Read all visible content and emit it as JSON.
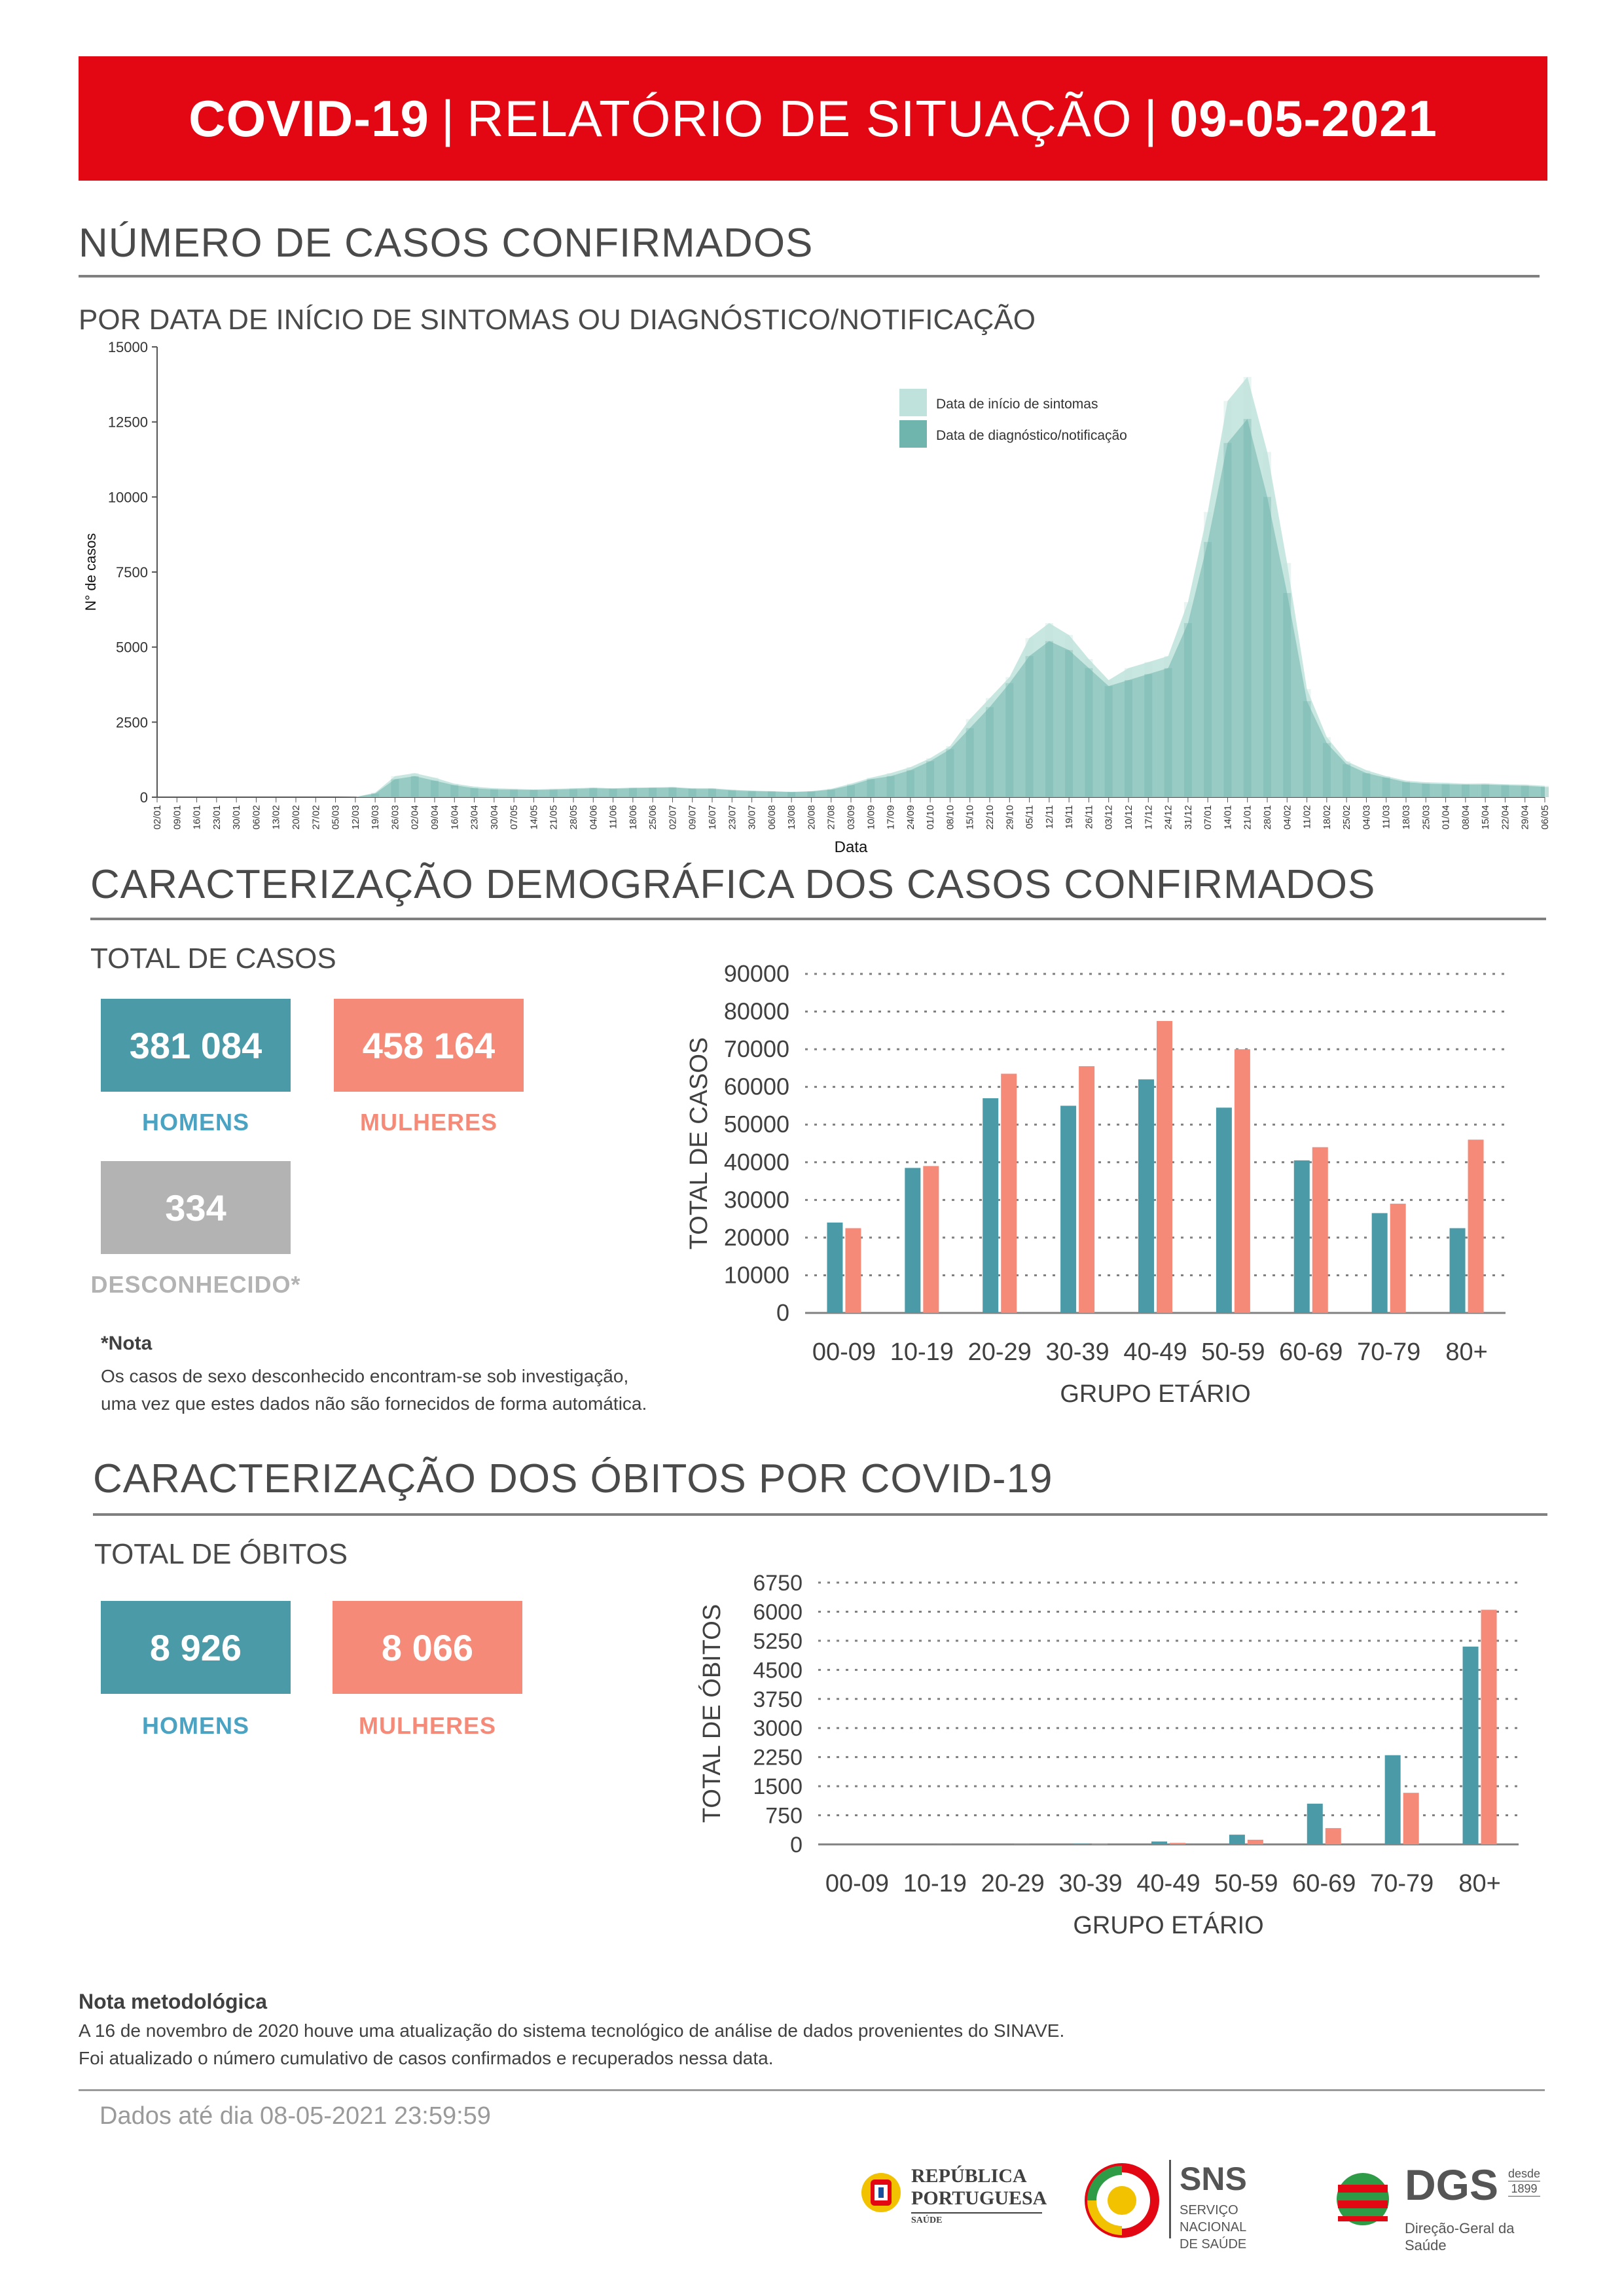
{
  "header": {
    "left": "COVID-19",
    "sep1": "|",
    "middle": "RELATÓRIO DE SITUAÇÃO",
    "sep2": "|",
    "date": "09-05-2021"
  },
  "section1": {
    "title": "NÚMERO DE CASOS CONFIRMADOS",
    "subtitle": "POR DATA DE INÍCIO DE SINTOMAS OU DIAGNÓSTICO/NOTIFICAÇÃO"
  },
  "section2": {
    "title": "CARACTERIZAÇÃO DEMOGRÁFICA DOS CASOS CONFIRMADOS",
    "total_label": "TOTAL DE CASOS",
    "men_value": "381 084",
    "men_label": "HOMENS",
    "women_value": "458 164",
    "women_label": "MULHERES",
    "unknown_value": "334",
    "unknown_label": "DESCONHECIDO*",
    "note_title": "*Nota",
    "note_line1": "Os casos de sexo desconhecido encontram-se sob investigação,",
    "note_line2": "uma vez que estes dados não são fornecidos de forma automática."
  },
  "section3": {
    "title": "CARACTERIZAÇÃO DOS ÓBITOS POR COVID-19",
    "total_label": "TOTAL DE ÓBITOS",
    "men_value": "8 926",
    "men_label": "HOMENS",
    "women_value": "8 066",
    "women_label": "MULHERES"
  },
  "footer": {
    "method_title": "Nota metodológica",
    "method_line1": "A 16 de novembro de 2020 houve uma atualização do sistema tecnológico de análise de dados provenientes do SINAVE.",
    "method_line2": "Foi atualizado o número cumulativo de casos confirmados e recuperados nessa data.",
    "data_until": "Dados até dia 08-05-2021 23:59:59",
    "logo1_line1": "REPÚBLICA",
    "logo1_line2": "PORTUGUESA",
    "logo1_line3": "SAÚDE",
    "logo2_big": "SNS",
    "logo2_line1": "SERVIÇO NACIONAL",
    "logo2_line2": "DE SAÚDE",
    "logo3_big": "DGS",
    "logo3_small1": "desde",
    "logo3_small2": "1899",
    "logo3_line": "Direção-Geral da Saúde"
  },
  "colors": {
    "accent_red": "#e30613",
    "men": "#4b9aa8",
    "women": "#f58a78",
    "unknown": "#b3b3b3",
    "symptoms": "#bfe3dc",
    "diagnosis": "#6fb5ad"
  },
  "chart_data": [
    {
      "type": "area",
      "ylabel": "N° de casos",
      "xlabel": "Data",
      "ylim": [
        0,
        15000
      ],
      "yticks": [
        0,
        2500,
        5000,
        7500,
        10000,
        12500,
        15000
      ],
      "x_ticks": [
        "02/01",
        "09/01",
        "16/01",
        "23/01",
        "30/01",
        "06/02",
        "13/02",
        "20/02",
        "27/02",
        "05/03",
        "12/03",
        "19/03",
        "26/03",
        "02/04",
        "09/04",
        "16/04",
        "23/04",
        "30/04",
        "07/05",
        "14/05",
        "21/05",
        "28/05",
        "04/06",
        "11/06",
        "18/06",
        "25/06",
        "02/07",
        "09/07",
        "16/07",
        "23/07",
        "30/07",
        "06/08",
        "13/08",
        "20/08",
        "27/08",
        "03/09",
        "10/09",
        "17/09",
        "24/09",
        "01/10",
        "08/10",
        "15/10",
        "22/10",
        "29/10",
        "05/11",
        "12/11",
        "19/11",
        "26/11",
        "03/12",
        "10/12",
        "17/12",
        "24/12",
        "31/12",
        "07/01",
        "14/01",
        "21/01",
        "28/01",
        "04/02",
        "11/02",
        "18/02",
        "25/02",
        "04/03",
        "11/03",
        "18/03",
        "25/03",
        "01/04",
        "08/04",
        "15/04",
        "22/04",
        "29/04",
        "06/05"
      ],
      "legend": [
        "Data de início de sintomas",
        "Data de diagnóstico/notificação"
      ],
      "legend_position": "top-right",
      "series": [
        {
          "name": "Data de início de sintomas",
          "values": [
            0,
            0,
            0,
            0,
            0,
            0,
            0,
            0,
            0,
            0,
            5,
            150,
            700,
            800,
            650,
            450,
            350,
            300,
            280,
            260,
            280,
            300,
            320,
            300,
            320,
            330,
            340,
            300,
            300,
            250,
            220,
            200,
            180,
            200,
            280,
            450,
            650,
            800,
            1000,
            1300,
            1700,
            2600,
            3300,
            4000,
            5300,
            5800,
            5400,
            4600,
            3900,
            4300,
            4500,
            4700,
            6500,
            9500,
            13200,
            14000,
            11500,
            7800,
            3600,
            2000,
            1200,
            900,
            700,
            550,
            500,
            480,
            450,
            460,
            430,
            420,
            380
          ]
        },
        {
          "name": "Data de diagnóstico/notificação",
          "values": [
            0,
            0,
            0,
            0,
            0,
            0,
            0,
            0,
            0,
            0,
            5,
            120,
            600,
            700,
            550,
            400,
            300,
            260,
            250,
            240,
            250,
            270,
            300,
            280,
            300,
            310,
            320,
            280,
            280,
            230,
            200,
            190,
            170,
            190,
            250,
            400,
            600,
            700,
            900,
            1200,
            1600,
            2300,
            3000,
            3800,
            4700,
            5200,
            4900,
            4300,
            3700,
            3900,
            4100,
            4300,
            5800,
            8500,
            11800,
            12600,
            10000,
            6800,
            3200,
            1800,
            1100,
            800,
            650,
            500,
            450,
            430,
            420,
            420,
            400,
            380,
            340
          ]
        }
      ]
    },
    {
      "type": "bar",
      "xlabel": "GRUPO ETÁRIO",
      "ylabel": "TOTAL DE CASOS",
      "ylim": [
        0,
        90000
      ],
      "yticks": [
        0,
        10000,
        20000,
        30000,
        40000,
        50000,
        60000,
        70000,
        80000,
        90000
      ],
      "categories": [
        "00-09",
        "10-19",
        "20-29",
        "30-39",
        "40-49",
        "50-59",
        "60-69",
        "70-79",
        "80+"
      ],
      "series": [
        {
          "name": "HOMENS",
          "values": [
            24000,
            38500,
            57000,
            55000,
            62000,
            54500,
            40500,
            26500,
            22500
          ]
        },
        {
          "name": "MULHERES",
          "values": [
            22500,
            39000,
            63500,
            65500,
            77500,
            70000,
            44000,
            29000,
            46000
          ]
        }
      ]
    },
    {
      "type": "bar",
      "xlabel": "GRUPO ETÁRIO",
      "ylabel": "TOTAL DE ÓBITOS",
      "ylim": [
        0,
        6750
      ],
      "yticks": [
        0,
        750,
        1500,
        2250,
        3000,
        3750,
        4500,
        5250,
        6000,
        6750
      ],
      "categories": [
        "00-09",
        "10-19",
        "20-29",
        "30-39",
        "40-49",
        "50-59",
        "60-69",
        "70-79",
        "80+"
      ],
      "series": [
        {
          "name": "HOMENS",
          "values": [
            2,
            3,
            10,
            25,
            75,
            250,
            1050,
            2300,
            5100
          ]
        },
        {
          "name": "MULHERES",
          "values": [
            1,
            2,
            6,
            15,
            40,
            120,
            420,
            1330,
            6050
          ]
        }
      ]
    }
  ]
}
